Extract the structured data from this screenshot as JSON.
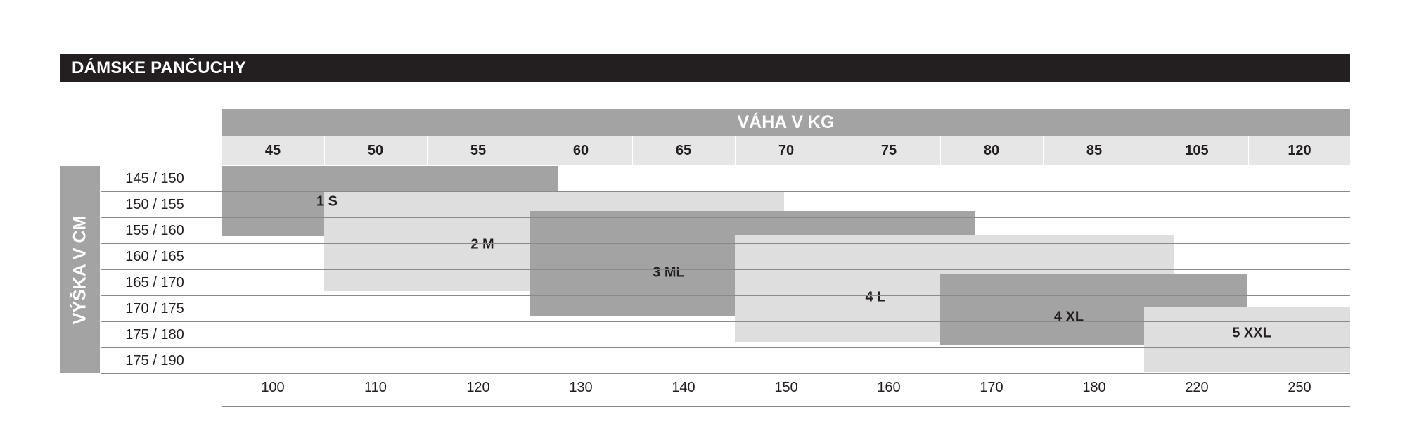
{
  "title": "DÁMSKE PANČUCHY",
  "colors": {
    "title_bg": "#231f20",
    "header_grey": "#a3a3a3",
    "dark_block": "#a3a3a3",
    "light_block": "#dedede",
    "weight_row": "#e6e6e6"
  },
  "chart_data": {
    "type": "table",
    "column_header": "VÁHA V KG",
    "row_header": "VÝŠKA V CM",
    "weights_kg": [
      "45",
      "50",
      "55",
      "60",
      "65",
      "70",
      "75",
      "80",
      "85",
      "105",
      "120"
    ],
    "heights_cm": [
      "145 / 150",
      "150 / 155",
      "155 / 160",
      "160 / 165",
      "165 / 170",
      "170 / 175",
      "175 / 180",
      "175 / 190"
    ],
    "bottom_values": [
      "100",
      "110",
      "120",
      "130",
      "140",
      "150",
      "160",
      "170",
      "180",
      "220",
      "250"
    ],
    "sizes": [
      {
        "label": "1 S",
        "shade": "dark",
        "weight_from": "45",
        "weight_to": "55",
        "height_from": "145 / 150",
        "height_to": "155 / 160"
      },
      {
        "label": "2 M",
        "shade": "light",
        "weight_from": "50",
        "weight_to": "65",
        "height_from": "150 / 155",
        "height_to": "165 / 170"
      },
      {
        "label": "3 ML",
        "shade": "dark",
        "weight_from": "60",
        "weight_to": "75",
        "height_from": "155 / 160",
        "height_to": "170 / 175"
      },
      {
        "label": "4 L",
        "shade": "light",
        "weight_from": "70",
        "weight_to": "85",
        "height_from": "160 / 165",
        "height_to": "175 / 180"
      },
      {
        "label": "4 XL",
        "shade": "dark",
        "weight_from": "80",
        "weight_to": "105",
        "height_from": "165 / 170",
        "height_to": "175 / 180"
      },
      {
        "label": "5 XXL",
        "shade": "light",
        "weight_from": "105",
        "weight_to": "120",
        "height_from": "170 / 175",
        "height_to": "175 / 190"
      }
    ]
  }
}
